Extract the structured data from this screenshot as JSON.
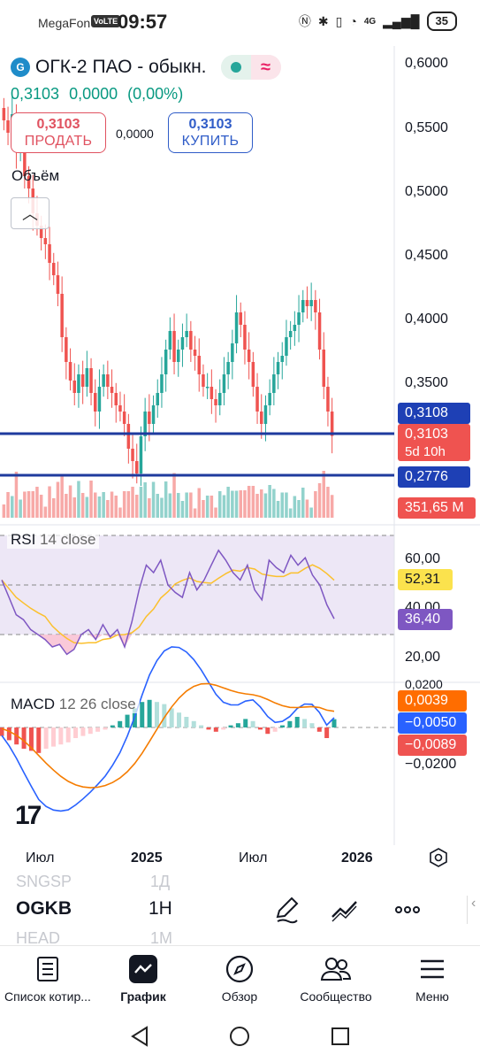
{
  "status_bar": {
    "carrier": "MegaFon",
    "volte": "VoLTE",
    "time": "09:57",
    "network": "4G",
    "battery": "35"
  },
  "symbol": {
    "name": "ОГК-2 ПАО - обыкн.",
    "logo_letter": "G",
    "last": "0,3103",
    "change": "0,0000",
    "change_pct": "(0,00%)",
    "status_dot_color": "#26a69a"
  },
  "trade": {
    "sell_price": "0,3103",
    "sell_label": "ПРОДАТЬ",
    "spread": "0,0000",
    "buy_price": "0,3103",
    "buy_label": "КУПИТЬ"
  },
  "volume_label": "Объём",
  "price_axis": [
    "0,6000",
    "0,5500",
    "0,5000",
    "0,4500",
    "0,4000",
    "0,3500"
  ],
  "price_tags": {
    "upper_line": "0,3108",
    "last": "0,3103",
    "countdown": "5d 10h",
    "lower_line": "0,2776",
    "volume": "351,65 M"
  },
  "rsi": {
    "name": "RSI",
    "params": "14 close",
    "axis": [
      "60,00",
      "40,00",
      "20,00"
    ],
    "value": "52,31",
    "signal": "36,40"
  },
  "macd": {
    "name": "MACD",
    "params": "12 26 close",
    "axis_top": "0,0200",
    "axis_bottom": "−0,0200",
    "hist": "0,0039",
    "macd": "−0,0050",
    "signal": "−0,0089"
  },
  "time_axis": [
    "Июл",
    "2025",
    "Июл",
    "2026"
  ],
  "watchlist": {
    "prev_ticker": "SNGSP",
    "prev_tf": "1Д",
    "ticker": "OGKB",
    "tf": "1H",
    "next_ticker": "HEAD",
    "next_tf": "1M"
  },
  "nav": [
    {
      "label": "Список котир..."
    },
    {
      "label": "График"
    },
    {
      "label": "Обзор"
    },
    {
      "label": "Сообщество"
    },
    {
      "label": "Меню"
    }
  ],
  "colors": {
    "up": "#26a69a",
    "down": "#ef5350",
    "line": "#1e3a9e",
    "rsi": "#7e57c2",
    "rsi_ma": "#fbc02d",
    "macd_line": "#2962ff",
    "macd_signal": "#f57c00"
  },
  "chart_data": {
    "type": "candlestick",
    "price_range": [
      0.25,
      0.61
    ],
    "horizontal_lines": [
      0.3108,
      0.2776
    ],
    "closes": [
      0.565,
      0.555,
      0.57,
      0.54,
      0.545,
      0.52,
      0.51,
      0.49,
      0.48,
      0.47,
      0.465,
      0.45,
      0.44,
      0.425,
      0.39,
      0.37,
      0.355,
      0.345,
      0.36,
      0.35,
      0.365,
      0.345,
      0.33,
      0.35,
      0.36,
      0.35,
      0.345,
      0.335,
      0.33,
      0.32,
      0.3,
      0.29,
      0.28,
      0.31,
      0.33,
      0.32,
      0.335,
      0.345,
      0.36,
      0.38,
      0.395,
      0.37,
      0.38,
      0.39,
      0.395,
      0.38,
      0.375,
      0.36,
      0.35,
      0.35,
      0.34,
      0.335,
      0.345,
      0.36,
      0.37,
      0.385,
      0.41,
      0.4,
      0.38,
      0.37,
      0.35,
      0.33,
      0.32,
      0.335,
      0.345,
      0.36,
      0.37,
      0.375,
      0.39,
      0.395,
      0.4,
      0.41,
      0.42,
      0.415,
      0.42,
      0.41,
      0.38,
      0.35,
      0.33,
      0.3103
    ],
    "rsi_values": [
      52,
      45,
      38,
      36,
      32,
      30,
      28,
      25,
      26,
      22,
      24,
      30,
      32,
      28,
      34,
      29,
      32,
      25,
      35,
      48,
      58,
      55,
      60,
      50,
      47,
      45,
      55,
      48,
      52,
      58,
      64,
      60,
      55,
      52,
      58,
      48,
      44,
      60,
      57,
      55,
      62,
      58,
      61,
      54,
      50,
      42,
      36.4
    ],
    "macd_hist": [
      -0.004,
      -0.006,
      -0.008,
      -0.01,
      -0.011,
      -0.012,
      -0.01,
      -0.009,
      -0.008,
      -0.007,
      -0.005,
      -0.004,
      -0.003,
      -0.002,
      -0.001,
      0.001,
      0.003,
      0.006,
      0.009,
      0.012,
      0.013,
      0.012,
      0.011,
      0.009,
      0.007,
      0.005,
      0.003,
      0.001,
      -0.001,
      -0.002,
      -0.001,
      0.001,
      0.002,
      0.004,
      0.003,
      -0.001,
      -0.003,
      -0.002,
      0.001,
      0.003,
      0.005,
      0.004,
      0.002,
      -0.002,
      -0.005,
      0.0039
    ]
  }
}
